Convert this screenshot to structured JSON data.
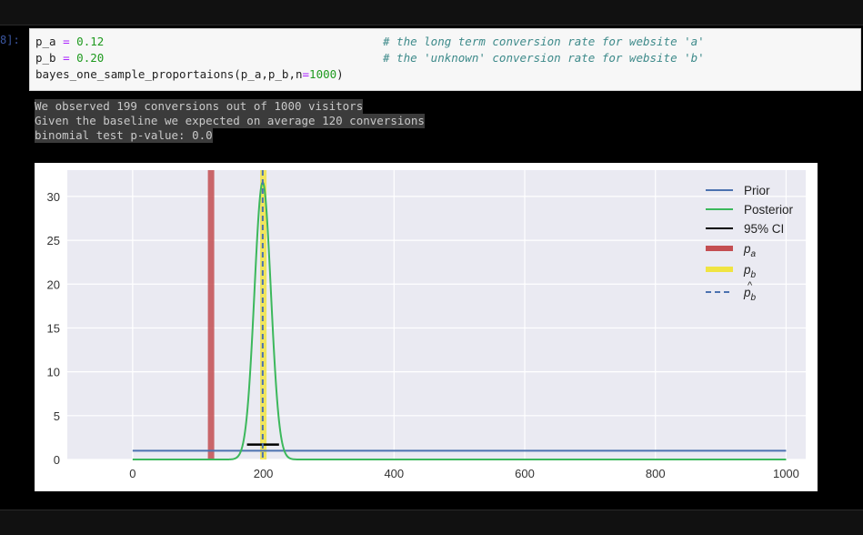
{
  "cell_prompt": "8]:",
  "code": {
    "line1": {
      "var": "p_a",
      "op": "=",
      "val": "0.12",
      "comment": "# the long term conversion rate for website 'a'"
    },
    "line2": {
      "var": "p_b",
      "op": "=",
      "val": "0.20",
      "comment": "# the 'unknown' conversion rate for website 'b'"
    },
    "line3": {
      "fn": "bayes_one_sample_proportaions(p_a,p_b,",
      "kw": "n",
      "eq": "=",
      "num": "1000",
      "close": ")"
    }
  },
  "output_lines": [
    "We observed 199 conversions out of 1000 visitors",
    "Given the baseline we expected on average 120 conversions",
    "binomial test p-value: 0.0"
  ],
  "chart_data": {
    "type": "line",
    "xlim": [
      -100,
      1030
    ],
    "ylim": [
      0,
      33
    ],
    "xticks": [
      "0",
      "200",
      "400",
      "600",
      "800",
      "1000"
    ],
    "yticks": [
      "0",
      "5",
      "10",
      "15",
      "20",
      "25",
      "30"
    ],
    "xtick_values": [
      0,
      200,
      400,
      600,
      800,
      1000
    ],
    "ytick_values": [
      0,
      5,
      10,
      15,
      20,
      25,
      30
    ],
    "grid": true,
    "legend_position": "top-right",
    "series": [
      {
        "name": "Prior",
        "kind": "line",
        "color": "#4c72b0",
        "x": [
          0,
          1000
        ],
        "y": [
          1,
          1
        ]
      },
      {
        "name": "Posterior",
        "kind": "gaussian",
        "color": "#3cb85c",
        "mean": 199,
        "sd": 12.6,
        "peak": 31.6,
        "x_range": [
          0,
          1000
        ]
      },
      {
        "name": "95% CI",
        "kind": "hline",
        "color": "#000000",
        "x": [
          175,
          224
        ],
        "y": 1.7
      },
      {
        "name": "p_a",
        "kind": "vline",
        "color": "#c44e52",
        "x": 120
      },
      {
        "name": "p_b",
        "kind": "vline",
        "color": "#f0e442",
        "x": 200
      },
      {
        "name": "p_b_hat",
        "kind": "vline-dashed",
        "color": "#4c72b0",
        "x": 199
      }
    ],
    "legend": [
      {
        "label": "Prior",
        "color": "#4c72b0",
        "style": "line"
      },
      {
        "label": "Posterior",
        "color": "#3cb85c",
        "style": "line"
      },
      {
        "label": "95% CI",
        "color": "#000000",
        "style": "line"
      },
      {
        "label": "p",
        "sub": "a",
        "color": "#c44e52",
        "style": "thick"
      },
      {
        "label": "p",
        "sub": "b",
        "color": "#f0e442",
        "style": "thick"
      },
      {
        "label": "p",
        "sub": "b",
        "hat": true,
        "color": "#4c72b0",
        "style": "dashed"
      }
    ]
  }
}
